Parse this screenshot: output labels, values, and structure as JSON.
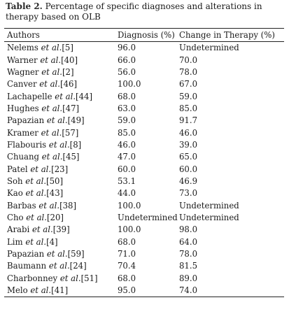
{
  "caption": {
    "label": "Table 2.",
    "text": " Percentage of specific diagnoses and alterations in therapy based on OLB"
  },
  "table": {
    "headers": [
      "Authors",
      "Diagnosis (%)",
      "Change in Therapy (%)"
    ],
    "rows": [
      {
        "name": "Nelems",
        "etal": "et al.",
        "ref": "[5]",
        "diagnosis": "96.0",
        "change": "Undetermined"
      },
      {
        "name": "Warner",
        "etal": "et al.",
        "ref": "[40]",
        "diagnosis": "66.0",
        "change": "70.0"
      },
      {
        "name": "Wagner",
        "etal": "et al.",
        "ref": "[2]",
        "diagnosis": "56.0",
        "change": "78.0"
      },
      {
        "name": "Canver",
        "etal": "et al.",
        "ref": "[46]",
        "diagnosis": "100.0",
        "change": "67.0"
      },
      {
        "name": "Lachapelle",
        "etal": "et al.",
        "ref": "[44]",
        "diagnosis": "68.0",
        "change": "59.0"
      },
      {
        "name": "Hughes",
        "etal": "et al.",
        "ref": "[47]",
        "diagnosis": "63.0",
        "change": "85.0"
      },
      {
        "name": "Papazian",
        "etal": "et al.",
        "ref": "[49]",
        "diagnosis": "59.0",
        "change": "91.7"
      },
      {
        "name": "Kramer",
        "etal": "et al.",
        "ref": "[57]",
        "diagnosis": "85.0",
        "change": "46.0"
      },
      {
        "name": "Flabouris",
        "etal": "et al.",
        "ref": "[8]",
        "diagnosis": "46.0",
        "change": "39.0"
      },
      {
        "name": "Chuang",
        "etal": "et al.",
        "ref": "[45]",
        "diagnosis": "47.0",
        "change": "65.0"
      },
      {
        "name": "Patel",
        "etal": "et al.",
        "ref": "[23]",
        "diagnosis": "60.0",
        "change": "60.0"
      },
      {
        "name": "Soh",
        "etal": "et al.",
        "ref": "[50]",
        "diagnosis": "53.1",
        "change": "46.9"
      },
      {
        "name": "Kao",
        "etal": "et al.",
        "ref": "[43]",
        "diagnosis": "44.0",
        "change": "73.0"
      },
      {
        "name": "Barbas",
        "etal": "et al.",
        "ref": "[38]",
        "diagnosis": "100.0",
        "change": "Undetermined"
      },
      {
        "name": "Cho",
        "etal": "et al.",
        "ref": "[20]",
        "diagnosis": "Undetermined",
        "change": "Undetermined"
      },
      {
        "name": "Arabi",
        "etal": "et al.",
        "ref": "[39]",
        "diagnosis": "100.0",
        "change": "98.0"
      },
      {
        "name": "Lim",
        "etal": "et al.",
        "ref": "[4]",
        "diagnosis": "68.0",
        "change": "64.0"
      },
      {
        "name": "Papazian",
        "etal": "et al.",
        "ref": "[59]",
        "diagnosis": "71.0",
        "change": "78.0"
      },
      {
        "name": "Baumann",
        "etal": "et al.",
        "ref": "[24]",
        "diagnosis": "70.4",
        "change": "81.5"
      },
      {
        "name": "Charbonney",
        "etal": "et al.",
        "ref": "[51]",
        "diagnosis": "68.0",
        "change": "89.0"
      },
      {
        "name": "Melo",
        "etal": "et al.",
        "ref": "[41]",
        "diagnosis": "95.0",
        "change": "74.0"
      }
    ]
  }
}
